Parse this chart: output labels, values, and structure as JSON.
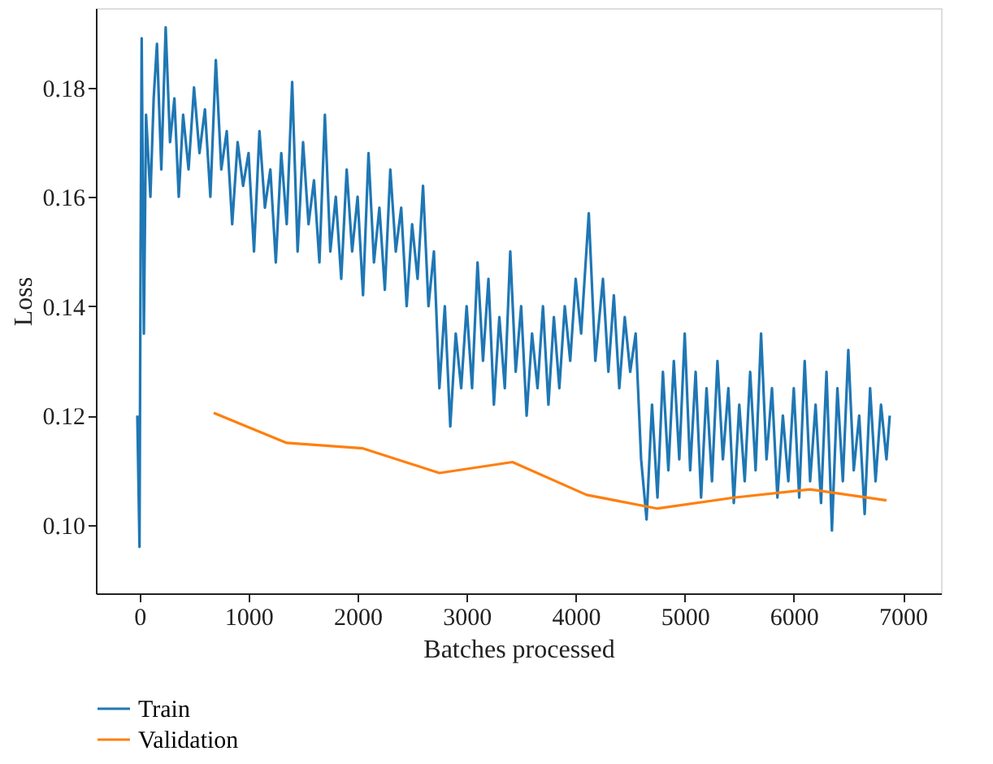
{
  "chart_data": {
    "type": "line",
    "xlabel": "Batches processed",
    "ylabel": "Loss",
    "xlim": [
      -400,
      7350
    ],
    "ylim": [
      0.0875,
      0.1945
    ],
    "xticks": [
      0,
      1000,
      2000,
      3000,
      4000,
      5000,
      6000,
      7000
    ],
    "yticks": [
      {
        "value": 0.1,
        "label": "0.10"
      },
      {
        "value": 0.12,
        "label": "0.12"
      },
      {
        "value": 0.14,
        "label": "0.14"
      },
      {
        "value": 0.16,
        "label": "0.16"
      },
      {
        "value": 0.18,
        "label": "0.18"
      }
    ],
    "grid": false,
    "legend": "bottom left",
    "line_style": "solid",
    "series": [
      {
        "name": "Train",
        "color": "#1f77b4",
        "x": [
          -20,
          0,
          10,
          20,
          40,
          60,
          100,
          130,
          160,
          200,
          240,
          280,
          320,
          360,
          400,
          450,
          500,
          550,
          600,
          650,
          700,
          750,
          800,
          850,
          900,
          950,
          1000,
          1050,
          1100,
          1150,
          1200,
          1250,
          1300,
          1350,
          1400,
          1450,
          1500,
          1550,
          1600,
          1650,
          1700,
          1750,
          1800,
          1850,
          1900,
          1950,
          2000,
          2050,
          2100,
          2150,
          2200,
          2250,
          2300,
          2350,
          2400,
          2450,
          2500,
          2550,
          2600,
          2650,
          2700,
          2750,
          2800,
          2850,
          2900,
          2950,
          3000,
          3050,
          3100,
          3150,
          3200,
          3250,
          3300,
          3350,
          3400,
          3450,
          3500,
          3550,
          3600,
          3650,
          3700,
          3750,
          3800,
          3850,
          3900,
          3950,
          4000,
          4050,
          4120,
          4180,
          4250,
          4300,
          4350,
          4400,
          4450,
          4500,
          4550,
          4600,
          4650,
          4700,
          4750,
          4800,
          4850,
          4900,
          4950,
          5000,
          5050,
          5100,
          5150,
          5200,
          5250,
          5300,
          5350,
          5400,
          5450,
          5500,
          5550,
          5600,
          5650,
          5700,
          5750,
          5800,
          5850,
          5900,
          5950,
          6000,
          6050,
          6100,
          6150,
          6200,
          6250,
          6300,
          6350,
          6400,
          6450,
          6500,
          6550,
          6600,
          6650,
          6700,
          6750,
          6800,
          6850,
          6880
        ],
        "values": [
          0.12,
          0.096,
          0.15,
          0.189,
          0.135,
          0.175,
          0.16,
          0.178,
          0.188,
          0.165,
          0.191,
          0.17,
          0.178,
          0.16,
          0.175,
          0.165,
          0.18,
          0.168,
          0.176,
          0.16,
          0.185,
          0.165,
          0.172,
          0.155,
          0.17,
          0.162,
          0.168,
          0.15,
          0.172,
          0.158,
          0.165,
          0.148,
          0.168,
          0.155,
          0.181,
          0.15,
          0.17,
          0.155,
          0.163,
          0.148,
          0.175,
          0.15,
          0.16,
          0.145,
          0.165,
          0.15,
          0.16,
          0.142,
          0.168,
          0.148,
          0.158,
          0.143,
          0.165,
          0.15,
          0.158,
          0.14,
          0.155,
          0.145,
          0.162,
          0.14,
          0.15,
          0.125,
          0.14,
          0.118,
          0.135,
          0.125,
          0.14,
          0.125,
          0.148,
          0.13,
          0.145,
          0.122,
          0.138,
          0.125,
          0.15,
          0.128,
          0.14,
          0.12,
          0.135,
          0.125,
          0.14,
          0.122,
          0.138,
          0.125,
          0.14,
          0.13,
          0.145,
          0.135,
          0.157,
          0.13,
          0.145,
          0.128,
          0.142,
          0.125,
          0.138,
          0.128,
          0.135,
          0.112,
          0.101,
          0.122,
          0.105,
          0.128,
          0.11,
          0.13,
          0.112,
          0.135,
          0.11,
          0.128,
          0.105,
          0.125,
          0.108,
          0.13,
          0.112,
          0.125,
          0.104,
          0.122,
          0.108,
          0.128,
          0.11,
          0.135,
          0.112,
          0.125,
          0.105,
          0.12,
          0.108,
          0.125,
          0.105,
          0.13,
          0.108,
          0.122,
          0.104,
          0.128,
          0.099,
          0.125,
          0.108,
          0.132,
          0.11,
          0.12,
          0.102,
          0.125,
          0.108,
          0.122,
          0.112,
          0.12
        ]
      },
      {
        "name": "Validation",
        "color": "#ff7f0e",
        "x": [
          680,
          1350,
          2050,
          2750,
          3420,
          4100,
          4750,
          5450,
          6150,
          6850
        ],
        "values": [
          0.1205,
          0.115,
          0.114,
          0.1095,
          0.1115,
          0.1055,
          0.103,
          0.105,
          0.1065,
          0.1045
        ]
      }
    ]
  }
}
